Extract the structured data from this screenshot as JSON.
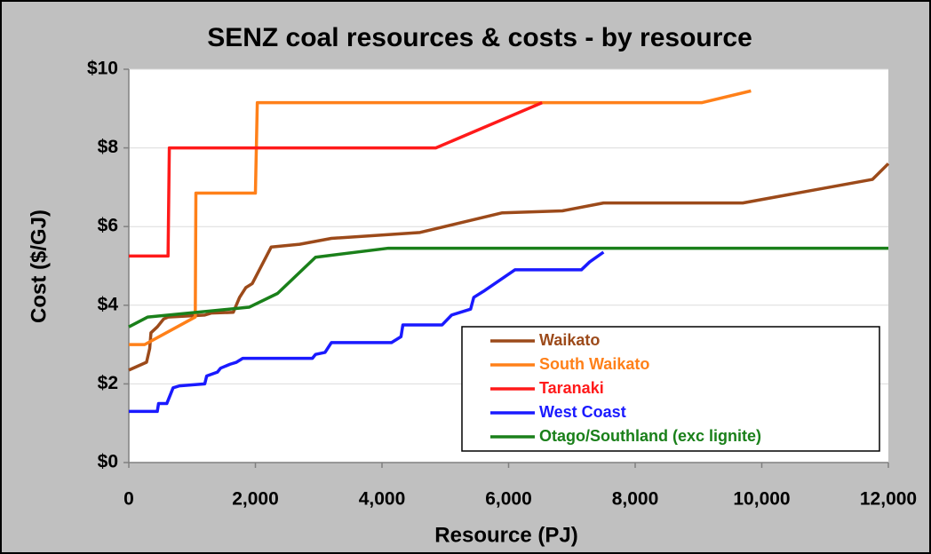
{
  "chart_data": {
    "type": "line",
    "title": "SENZ coal resources & costs - by resource",
    "x_label": "Resource (PJ)",
    "y_label": "Cost ($/GJ)",
    "xlim": [
      0,
      12000
    ],
    "xticks": [
      0,
      {
        "value": 2000,
        "label": "2,000"
      },
      {
        "value": 4000,
        "label": "4,000"
      },
      {
        "value": 6000,
        "label": "6,000"
      },
      {
        "value": 8000,
        "label": "8,000"
      },
      {
        "value": 10000,
        "label": "10,000"
      },
      {
        "value": 12000,
        "label": "12,000"
      }
    ],
    "ylim": [
      0,
      10
    ],
    "yticks": [
      {
        "value": 0,
        "label": "$0"
      },
      {
        "value": 2,
        "label": "$2"
      },
      {
        "value": 4,
        "label": "$4"
      },
      {
        "value": 6,
        "label": "$6"
      },
      {
        "value": 8,
        "label": "$8"
      },
      {
        "value": 10,
        "label": "$10"
      }
    ],
    "grid": true,
    "legend": "lower right",
    "series": [
      {
        "name": "Waikato",
        "color": "#9c4a1a",
        "x": [
          0,
          280,
          330,
          350,
          450,
          550,
          620,
          1200,
          1300,
          1650,
          1750,
          1850,
          1950,
          2250,
          2700,
          3200,
          4600,
          5900,
          6850,
          7500,
          9700,
          11750,
          12000
        ],
        "values": [
          2.35,
          2.55,
          2.9,
          3.3,
          3.45,
          3.65,
          3.7,
          3.75,
          3.8,
          3.82,
          4.2,
          4.45,
          4.55,
          5.48,
          5.55,
          5.7,
          5.85,
          6.35,
          6.4,
          6.6,
          6.6,
          7.2,
          7.6
        ]
      },
      {
        "name": "South Waikato",
        "color": "#ff8019",
        "x": [
          0,
          250,
          1050,
          1060,
          2000,
          2030,
          9050,
          9830
        ],
        "values": [
          3.0,
          3.0,
          3.7,
          6.85,
          6.85,
          9.15,
          9.15,
          9.45
        ]
      },
      {
        "name": "Taranaki",
        "color": "#ff1a1a",
        "x": [
          0,
          620,
          640,
          4850,
          6530
        ],
        "values": [
          5.25,
          5.25,
          8.0,
          8.0,
          9.15
        ]
      },
      {
        "name": "West Coast",
        "color": "#1a1aff",
        "x": [
          0,
          450,
          470,
          600,
          700,
          800,
          1200,
          1230,
          1400,
          1450,
          1600,
          1700,
          1800,
          2900,
          2950,
          3100,
          3200,
          4150,
          4300,
          4330,
          4950,
          5100,
          5400,
          5450,
          5600,
          6100,
          7150,
          7280,
          7500
        ],
        "values": [
          1.3,
          1.3,
          1.5,
          1.5,
          1.9,
          1.95,
          2.0,
          2.2,
          2.3,
          2.4,
          2.5,
          2.55,
          2.65,
          2.65,
          2.75,
          2.8,
          3.05,
          3.05,
          3.2,
          3.5,
          3.5,
          3.75,
          3.9,
          4.2,
          4.35,
          4.9,
          4.9,
          5.1,
          5.35
        ]
      },
      {
        "name": "Otago/Southland (exc lignite)",
        "color": "#1a801a",
        "x": [
          0,
          300,
          1900,
          2350,
          2950,
          4100,
          12000
        ],
        "values": [
          3.45,
          3.7,
          3.95,
          4.3,
          5.22,
          5.45,
          5.45
        ]
      }
    ]
  }
}
